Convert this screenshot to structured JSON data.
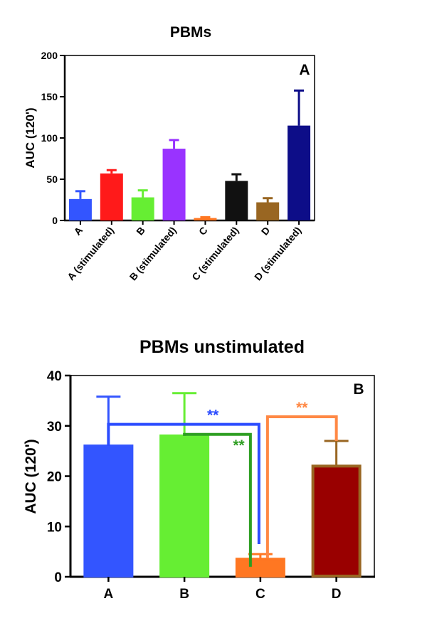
{
  "chart_data": [
    {
      "type": "bar",
      "panel": "A",
      "title": "PBMs",
      "ylabel": "AUC (120')",
      "ylim": [
        0,
        200
      ],
      "yticks": [
        0,
        50,
        100,
        150,
        200
      ],
      "categories": [
        "A",
        "A (stimulated)",
        "B",
        "B (stimulated)",
        "C",
        "C (stimulated)",
        "D",
        "D (stimulated)"
      ],
      "values": [
        26,
        57,
        28,
        87,
        3,
        48,
        22,
        115
      ],
      "errors": [
        9.5,
        4,
        8.5,
        10.5,
        1,
        8,
        5,
        42.5
      ],
      "colors": [
        "#3355ff",
        "#ff1a1a",
        "#66ee33",
        "#9933ff",
        "#ff7722",
        "#111111",
        "#996622",
        "#0d0d88"
      ],
      "grid": false
    },
    {
      "type": "bar",
      "panel": "B",
      "title": "PBMs unstimulated",
      "ylabel": "AUC (120')",
      "ylim": [
        0,
        40
      ],
      "yticks": [
        0,
        10,
        20,
        30,
        40
      ],
      "categories": [
        "A",
        "B",
        "C",
        "D"
      ],
      "values": [
        26,
        28,
        3.5,
        22
      ],
      "errors": [
        9.8,
        8.5,
        1,
        5
      ],
      "colors": [
        "#3355ff",
        "#66ee33",
        "#ff7722",
        "#990000"
      ],
      "edge_colors": [
        "#3355ff",
        "#66ee33",
        "#ff7722",
        "#996622"
      ],
      "annotations": [
        {
          "label": "**",
          "from": "A",
          "to": "C",
          "color": "#2b4cff"
        },
        {
          "label": "**",
          "from": "B",
          "to": "C",
          "color": "#2e9e22"
        },
        {
          "label": "**",
          "from": "C",
          "to": "D",
          "color": "#ff8844"
        }
      ],
      "grid": false
    }
  ]
}
